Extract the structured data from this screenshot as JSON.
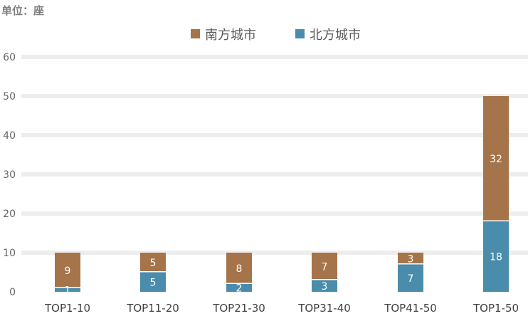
{
  "unit_label": "单位：座",
  "colors": {
    "south": "#A5744A",
    "north": "#4A8CAB",
    "grid": "#EDEDED"
  },
  "chart_data": {
    "type": "bar",
    "stacked": true,
    "categories": [
      "TOP1-10",
      "TOP11-20",
      "TOP21-30",
      "TOP31-40",
      "TOP41-50",
      "TOP1-50"
    ],
    "series": [
      {
        "name": "北方城市",
        "values": [
          1,
          5,
          2,
          3,
          7,
          18
        ]
      },
      {
        "name": "南方城市",
        "values": [
          9,
          5,
          8,
          7,
          3,
          32
        ]
      }
    ],
    "ylim": [
      0,
      60
    ],
    "yticks": [
      0,
      10,
      20,
      30,
      40,
      50,
      60
    ],
    "legend": "top",
    "grid": true,
    "data_labels": true
  }
}
